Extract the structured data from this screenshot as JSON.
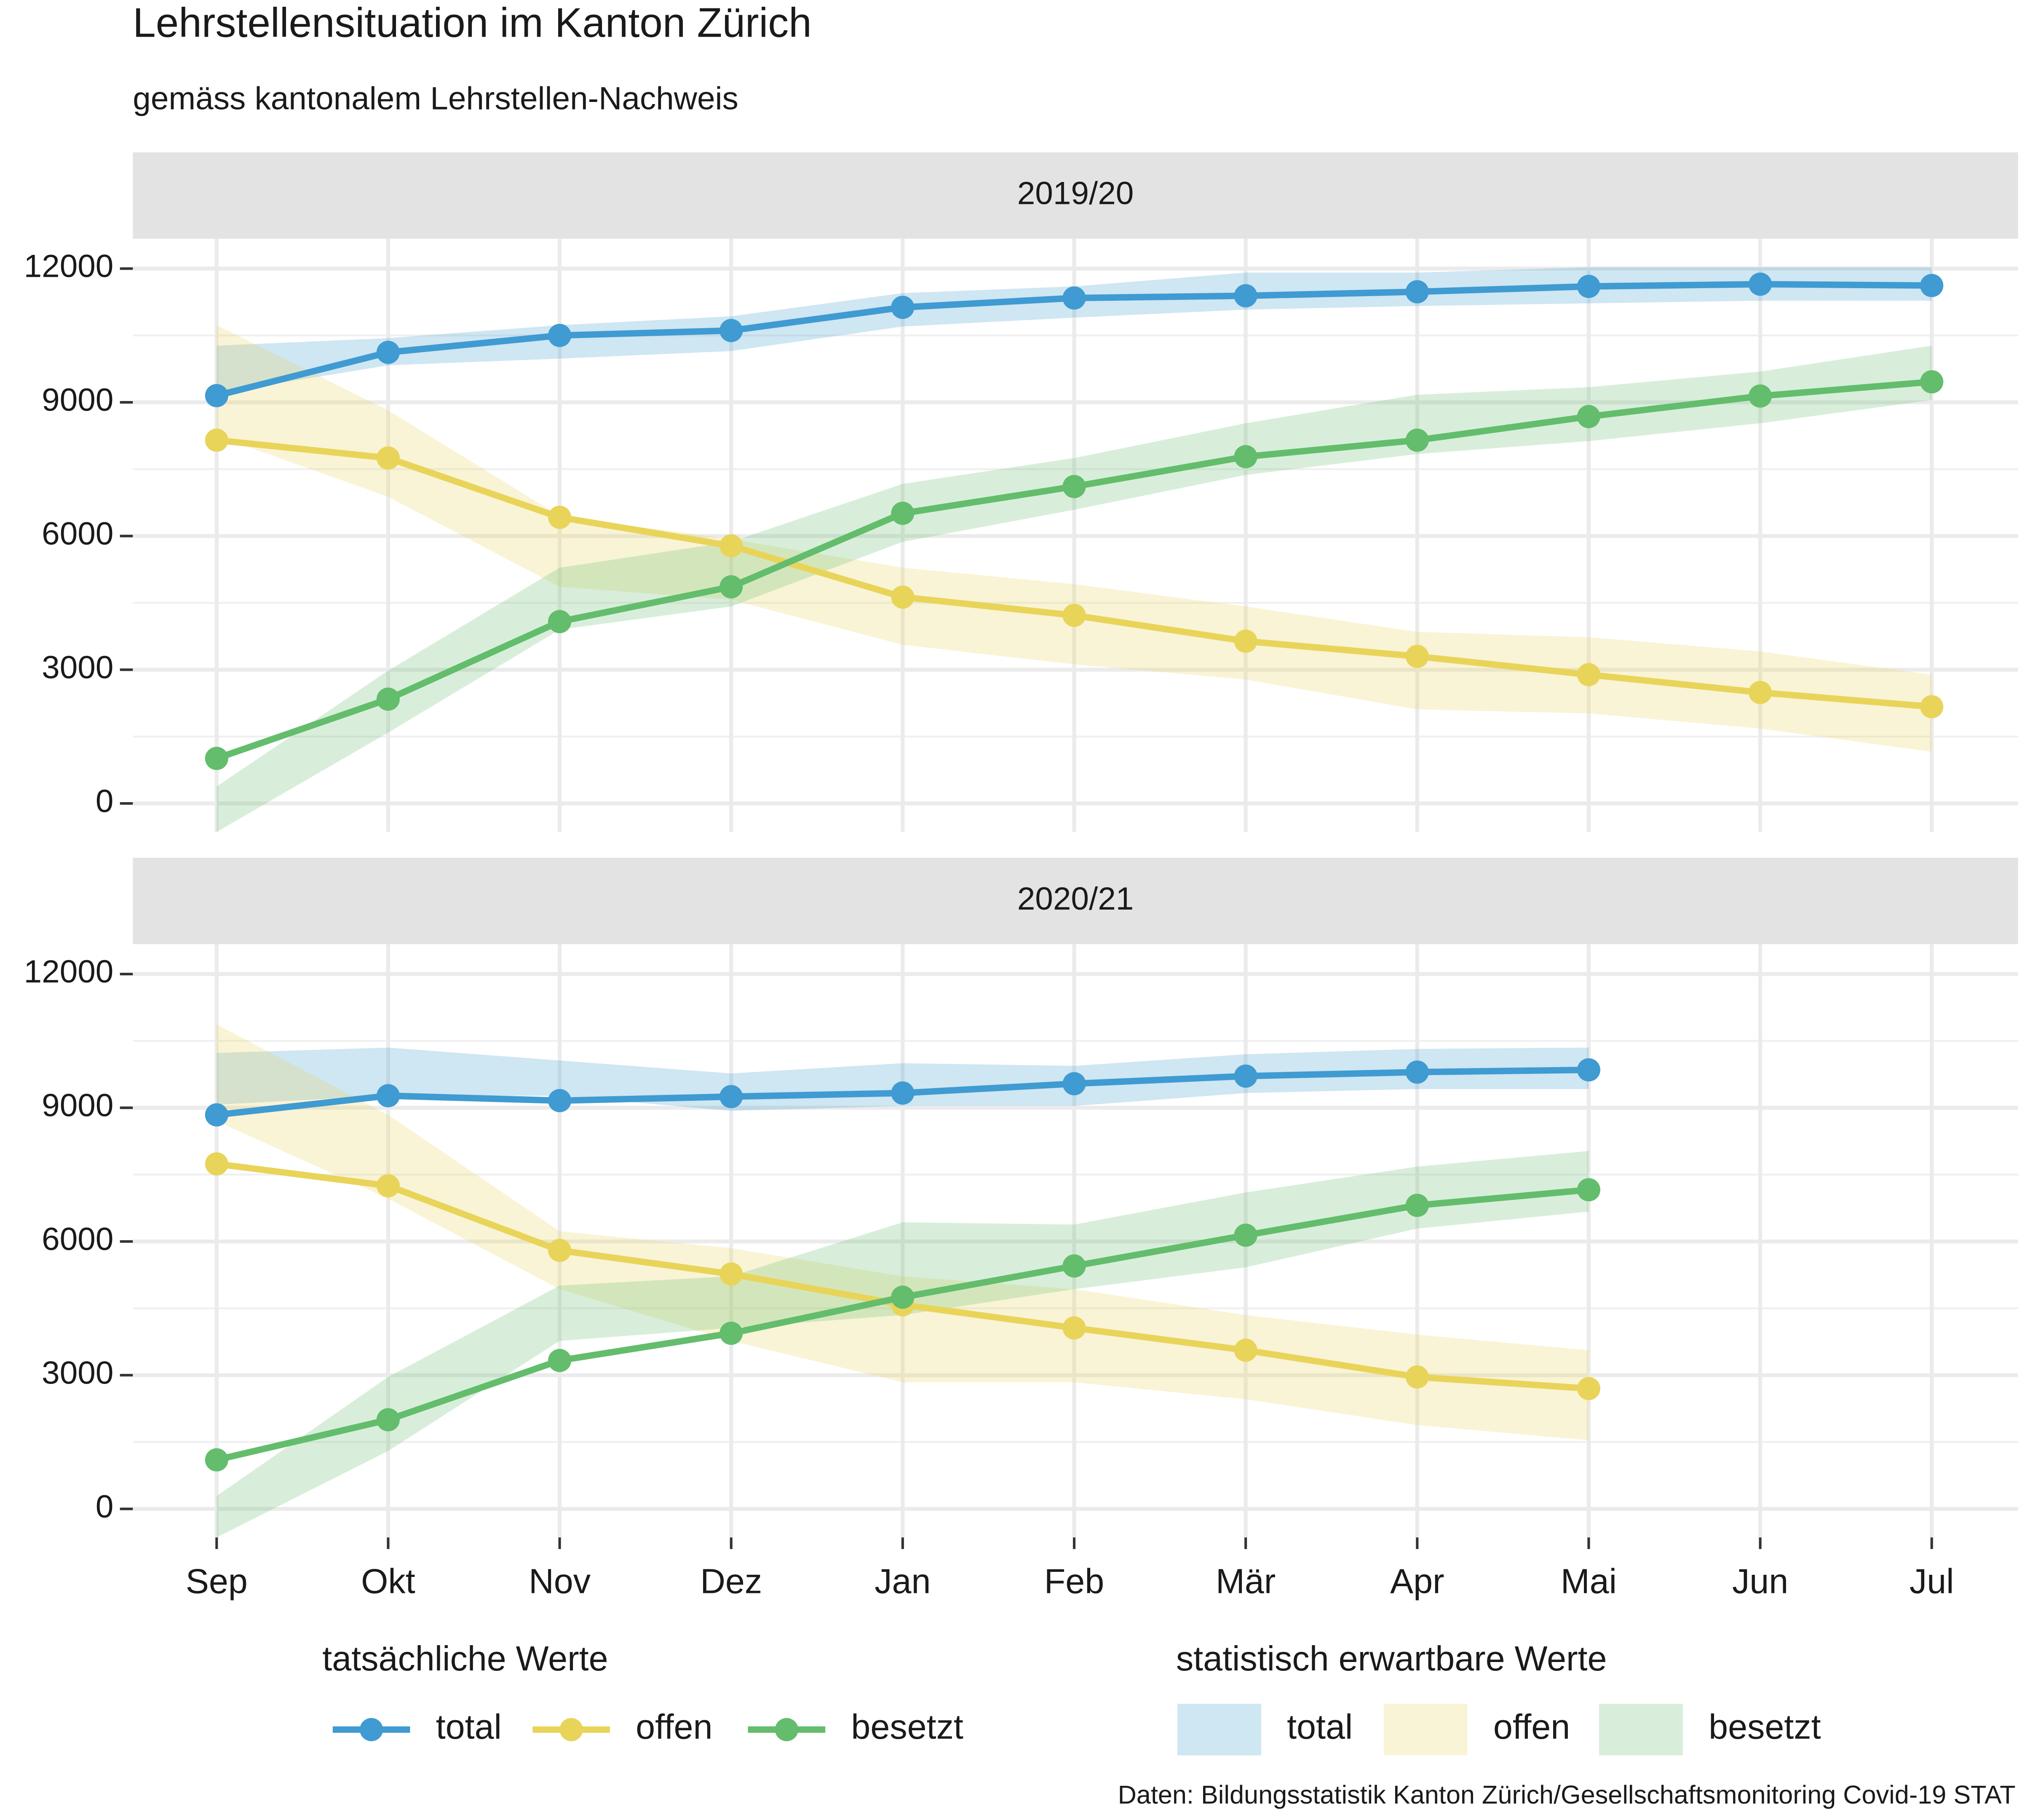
{
  "chart_data": {
    "type": "line",
    "title": "Lehrstellensituation im Kanton Zürich",
    "subtitle": "gemäss kantonalem Lehrstellen-Nachweis",
    "caption": "Daten: Bildungsstatistik Kanton Zürich/Gesellschaftsmonitoring Covid-19 STAT",
    "categories": [
      "Sep",
      "Okt",
      "Nov",
      "Dez",
      "Jan",
      "Feb",
      "Mär",
      "Apr",
      "Mai",
      "Jun",
      "Jul"
    ],
    "ylim": [
      -640,
      12670
    ],
    "yticks": [
      0,
      3000,
      6000,
      9000,
      12000
    ],
    "yminorticks": [
      1500,
      4500,
      7500,
      10500
    ],
    "grid": true,
    "legend_titles": [
      "tatsächliche Werte",
      "statistisch erwartbare Werte"
    ],
    "legend_position": "bottom",
    "facets": [
      {
        "label": "2019/20",
        "series": [
          {
            "name": "total",
            "color": "#3f9bd1",
            "values": [
              9150,
              10120,
              10500,
              10610,
              11130,
              11340,
              11390,
              11480,
              11600,
              11650,
              11620
            ],
            "upper": [
              10270,
              10440,
              10730,
              10930,
              11450,
              11600,
              11910,
              11910,
              12030,
              12030,
              12030
            ],
            "lower": [
              9200,
              9830,
              9980,
              10150,
              10700,
              10900,
              11080,
              11160,
              11220,
              11280,
              11280
            ]
          },
          {
            "name": "offen",
            "color": "#e9d45a",
            "values": [
              8150,
              7750,
              6420,
              5780,
              4630,
              4220,
              3640,
              3300,
              2890,
              2490,
              2170
            ],
            "upper": [
              10730,
              8820,
              6450,
              5930,
              5290,
              4920,
              4420,
              3850,
              3730,
              3410,
              2890
            ],
            "lower": [
              8250,
              6880,
              4860,
              4570,
              3560,
              3120,
              2780,
              2110,
              2020,
              1680,
              1160
            ]
          },
          {
            "name": "besetzt",
            "color": "#63bd6c",
            "values": [
              1010,
              2340,
              4080,
              4860,
              6510,
              7110,
              7780,
              8150,
              8680,
              9140,
              9460
            ],
            "upper": [
              380,
              2980,
              5290,
              5870,
              7170,
              7750,
              8530,
              9170,
              9340,
              9690,
              10270
            ],
            "lower": [
              -640,
              1590,
              3900,
              4420,
              5870,
              6590,
              7370,
              7840,
              8130,
              8530,
              9050
            ]
          }
        ]
      },
      {
        "label": "2020/21",
        "series": [
          {
            "name": "total",
            "color": "#3f9bd1",
            "values": [
              8840,
              9270,
              9160,
              9250,
              9330,
              9540,
              9710,
              9800,
              9850,
              null,
              null
            ],
            "upper": [
              10230,
              10350,
              10060,
              9770,
              10000,
              9940,
              10200,
              10320,
              10350,
              null,
              null
            ],
            "lower": [
              9070,
              9270,
              9270,
              8930,
              9040,
              9040,
              9330,
              9420,
              9420,
              null,
              null
            ]
          },
          {
            "name": "offen",
            "color": "#e9d45a",
            "values": [
              7740,
              7250,
              5800,
              5270,
              4580,
              4060,
              3560,
              2960,
              2700,
              null,
              null
            ],
            "upper": [
              10870,
              8840,
              6230,
              5850,
              5220,
              4930,
              4350,
              3910,
              3560,
              null,
              null
            ],
            "lower": [
              8700,
              6960,
              4930,
              3770,
              2840,
              2840,
              2460,
              1880,
              1540,
              null,
              null
            ]
          },
          {
            "name": "besetzt",
            "color": "#63bd6c",
            "values": [
              1100,
              2000,
              3330,
              3940,
              4750,
              5450,
              6140,
              6810,
              7160,
              null,
              null
            ],
            "upper": [
              290,
              2960,
              5010,
              5220,
              6430,
              6380,
              7100,
              7680,
              8030,
              null,
              null
            ],
            "lower": [
              -640,
              1300,
              3770,
              4060,
              4350,
              4930,
              5420,
              6290,
              6670,
              null,
              null
            ]
          }
        ]
      }
    ]
  }
}
